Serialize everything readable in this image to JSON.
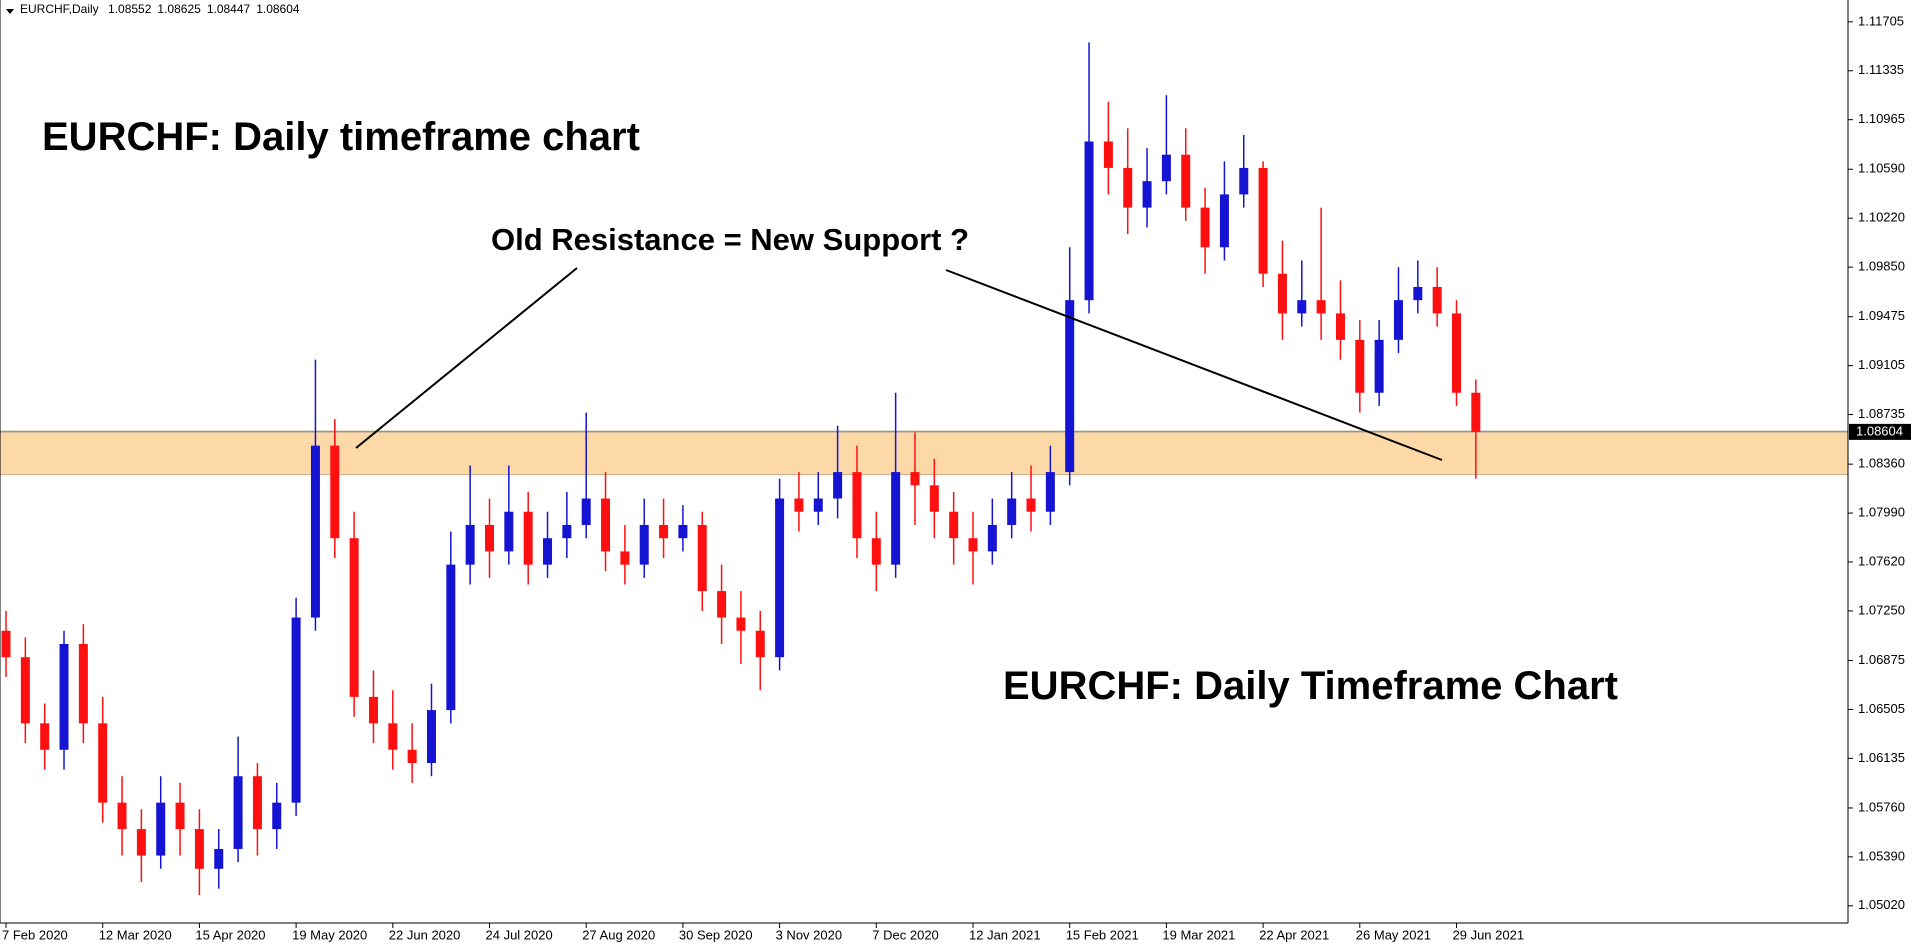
{
  "chart_data": {
    "type": "candlestick",
    "symbol": "EURCHF,Daily",
    "header_ohlc": [
      1.08552,
      1.08625,
      1.08447,
      1.08604
    ],
    "title": "EURCHF: Daily timeframe chart",
    "annotation": "Old Resistance = New Support ?",
    "subtitle": "EURCHF: Daily Timeframe Chart",
    "up_color": "#1414d2",
    "down_color": "#ff1010",
    "zone_color": "#fdd9a8",
    "support_zone": [
      1.0828,
      1.0861
    ],
    "current_price": 1.08604,
    "ylim": [
      1.0489,
      1.1187
    ],
    "yticks": [
      1.11705,
      1.11335,
      1.10965,
      {
        "value": 1.1059,
        "label": "1.10590"
      },
      {
        "value": 1.1022,
        "label": "1.10220"
      },
      {
        "value": 1.0985,
        "label": "1.09850"
      },
      1.09475,
      1.09105,
      1.08735,
      {
        "value": 1.0836,
        "label": "1.08360"
      },
      {
        "value": 1.0799,
        "label": "1.07990"
      },
      {
        "value": 1.0762,
        "label": "1.07620"
      },
      {
        "value": 1.0725,
        "label": "1.07250"
      },
      1.06875,
      1.06505,
      1.06135,
      {
        "value": 1.0576,
        "label": "1.05760"
      },
      {
        "value": 1.0539,
        "label": "1.05390"
      },
      {
        "value": 1.0502,
        "label": "1.05020"
      }
    ],
    "categories": [
      "7 Feb 2020",
      null,
      null,
      null,
      null,
      "12 Mar 2020",
      null,
      null,
      null,
      null,
      "15 Apr 2020",
      null,
      null,
      null,
      null,
      "19 May 2020",
      null,
      null,
      null,
      null,
      "22 Jun 2020",
      null,
      null,
      null,
      null,
      "24 Jul 2020",
      null,
      null,
      null,
      null,
      "27 Aug 2020",
      null,
      null,
      null,
      null,
      "30 Sep 2020",
      null,
      null,
      null,
      null,
      "3 Nov 2020",
      null,
      null,
      null,
      null,
      "7 Dec 2020",
      null,
      null,
      null,
      null,
      "12 Jan 2021",
      null,
      null,
      null,
      null,
      "15 Feb 2021",
      null,
      null,
      null,
      null,
      "19 Mar 2021",
      null,
      null,
      null,
      null,
      "22 Apr 2021",
      null,
      null,
      null,
      null,
      "26 May 2021",
      null,
      null,
      null,
      null,
      "29 Jun 2021",
      null
    ],
    "open": [
      1.071,
      1.069,
      1.064,
      1.062,
      1.07,
      1.064,
      1.058,
      1.056,
      1.054,
      1.058,
      1.056,
      1.053,
      1.0545,
      1.06,
      1.056,
      1.058,
      1.072,
      1.085,
      1.078,
      1.066,
      1.064,
      1.062,
      1.061,
      1.065,
      1.076,
      1.079,
      1.077,
      1.08,
      1.076,
      1.078,
      1.079,
      1.081,
      1.077,
      1.076,
      1.079,
      1.078,
      1.079,
      1.074,
      1.072,
      1.071,
      1.069,
      1.081,
      1.08,
      1.081,
      1.083,
      1.078,
      1.076,
      1.083,
      1.082,
      1.08,
      1.078,
      1.077,
      1.079,
      1.081,
      1.08,
      1.083,
      1.096,
      1.108,
      1.106,
      1.103,
      1.105,
      1.107,
      1.103,
      1.1,
      1.104,
      1.106,
      1.098,
      1.095,
      1.096,
      1.095,
      1.093,
      1.089,
      1.093,
      1.096,
      1.097,
      1.095,
      1.089
    ],
    "high": [
      1.0725,
      1.0705,
      1.0655,
      1.071,
      1.0715,
      1.066,
      1.06,
      1.0575,
      1.06,
      1.0595,
      1.0575,
      1.056,
      1.063,
      1.061,
      1.0595,
      1.0735,
      1.0915,
      1.087,
      1.08,
      1.068,
      1.0665,
      1.064,
      1.067,
      1.0785,
      1.0835,
      1.081,
      1.0835,
      1.0815,
      1.08,
      1.0815,
      1.0875,
      1.083,
      1.079,
      1.081,
      1.081,
      1.0805,
      1.08,
      1.076,
      1.074,
      1.0725,
      1.0825,
      1.083,
      1.083,
      1.0865,
      1.085,
      1.08,
      1.089,
      1.086,
      1.084,
      1.0815,
      1.08,
      1.081,
      1.083,
      1.0835,
      1.085,
      1.1,
      1.1155,
      1.111,
      1.109,
      1.1075,
      1.1115,
      1.109,
      1.1045,
      1.1065,
      1.1085,
      1.1065,
      1.1005,
      1.099,
      1.103,
      1.0975,
      1.0945,
      1.0945,
      1.0985,
      1.099,
      1.0985,
      1.096,
      1.09
    ],
    "low": [
      1.0675,
      1.0625,
      1.0605,
      1.0605,
      1.0625,
      1.0565,
      1.054,
      1.052,
      1.053,
      1.054,
      1.051,
      1.0515,
      1.0535,
      1.054,
      1.0545,
      1.057,
      1.071,
      1.0765,
      1.0645,
      1.0625,
      1.0605,
      1.0595,
      1.06,
      1.064,
      1.0745,
      1.075,
      1.076,
      1.0745,
      1.075,
      1.0765,
      1.078,
      1.0755,
      1.0745,
      1.075,
      1.0765,
      1.077,
      1.0725,
      1.07,
      1.0685,
      1.0665,
      1.068,
      1.0785,
      1.079,
      1.0795,
      1.0765,
      1.074,
      1.075,
      1.079,
      1.078,
      1.076,
      1.0745,
      1.076,
      1.078,
      1.0785,
      1.079,
      1.082,
      1.095,
      1.104,
      1.101,
      1.1015,
      1.104,
      1.102,
      1.098,
      1.099,
      1.103,
      1.097,
      1.093,
      1.094,
      1.093,
      1.0915,
      1.0875,
      1.088,
      1.092,
      1.095,
      1.094,
      1.088,
      1.0825
    ],
    "close": [
      1.069,
      1.064,
      1.062,
      1.07,
      1.064,
      1.058,
      1.056,
      1.054,
      1.058,
      1.056,
      1.053,
      1.0545,
      1.06,
      1.056,
      1.058,
      1.072,
      1.085,
      1.078,
      1.066,
      1.064,
      1.062,
      1.061,
      1.065,
      1.076,
      1.079,
      1.077,
      1.08,
      1.076,
      1.078,
      1.079,
      1.081,
      1.077,
      1.076,
      1.079,
      1.078,
      1.079,
      1.074,
      1.072,
      1.071,
      1.069,
      1.081,
      1.08,
      1.081,
      1.083,
      1.078,
      1.076,
      1.083,
      1.082,
      1.08,
      1.078,
      1.077,
      1.079,
      1.081,
      1.08,
      1.083,
      1.096,
      1.108,
      1.106,
      1.103,
      1.105,
      1.107,
      1.103,
      1.1,
      1.104,
      1.106,
      1.098,
      1.095,
      1.096,
      1.095,
      1.093,
      1.089,
      1.093,
      1.096,
      1.097,
      1.095,
      1.089,
      1.08604
    ]
  }
}
